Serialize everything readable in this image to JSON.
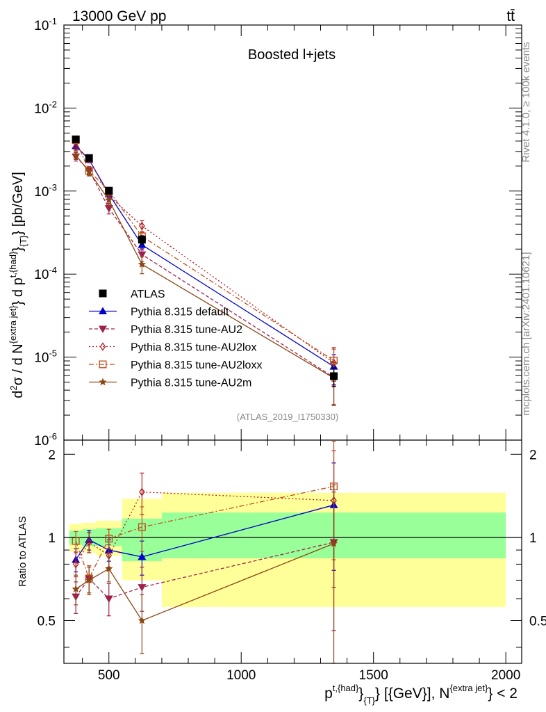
{
  "header": {
    "left": "13000 GeV pp",
    "right": "tt̄"
  },
  "title": "Boosted l+jets",
  "side_labels": {
    "rivet": "Rivet 4.1.0, ≥ 100k events",
    "mcplots": "mcplots.cern.ch [arXiv:2401.10621]"
  },
  "analysis_id": "(ATLAS_2019_I1750330)",
  "chart_data": [
    {
      "type": "scatter",
      "panel": "main",
      "yscale": "log",
      "ylim": [
        1e-06,
        0.1
      ],
      "xlim": [
        330,
        2060
      ],
      "ylabel": "d²σ / d N^{extra jet} d p_T^{t,{had}} [pb/GeV]",
      "ytick_labels": [
        "10^-6",
        "10^-5",
        "10^-4",
        "10^-3",
        "10^-2",
        "10^-1"
      ],
      "bins": [
        [
          350,
          400
        ],
        [
          400,
          450
        ],
        [
          450,
          550
        ],
        [
          550,
          700
        ],
        [
          700,
          2000
        ]
      ],
      "series": [
        {
          "name": "ATLAS",
          "color": "#000000",
          "marker": "square-filled",
          "dash": "",
          "x": [
            375,
            425,
            500,
            625,
            1350
          ],
          "y": [
            0.0042,
            0.0025,
            0.00101,
            0.00026,
            5.9e-06
          ],
          "err": [
            0.0003,
            0.0002,
            8e-05,
            3e-05,
            1.5e-06
          ]
        },
        {
          "name": "Pythia 8.315 default",
          "color": "#0000cc",
          "marker": "triangle-up",
          "dash": "",
          "x": [
            375,
            425,
            500,
            625,
            1350
          ],
          "y": [
            0.0035,
            0.0024,
            0.00092,
            0.000225,
            7.7e-06
          ],
          "err": [
            0.0003,
            0.0002,
            0.0001,
            3e-05,
            3e-06
          ]
        },
        {
          "name": "Pythia 8.315 tune-AU2",
          "color": "#a0204a",
          "marker": "triangle-down",
          "dash": "5,3",
          "x": [
            375,
            425,
            500,
            625,
            1350
          ],
          "y": [
            0.0026,
            0.00178,
            0.00062,
            0.000172,
            5.7e-06
          ],
          "err": [
            0.0003,
            0.0002,
            9e-05,
            3e-05,
            3e-06
          ]
        },
        {
          "name": "Pythia 8.315 tune-AU2lox",
          "color": "#b01e1e",
          "marker": "diamond-open",
          "dash": "2,3",
          "x": [
            375,
            425,
            500,
            625,
            1350
          ],
          "y": [
            0.0034,
            0.0024,
            0.00088,
            0.00038,
            8.5e-06
          ],
          "err": [
            0.0003,
            0.0002,
            0.0001,
            6e-05,
            4e-06
          ]
        },
        {
          "name": "Pythia 8.315 tune-AU2loxx",
          "color": "#c0501e",
          "marker": "square-open",
          "dash": "7,3,2,3",
          "x": [
            375,
            425,
            500,
            625,
            1350
          ],
          "y": [
            0.0041,
            0.00175,
            0.00101,
            0.000285,
            9.1e-06
          ],
          "err": [
            0.0003,
            0.0002,
            0.0001,
            4e-05,
            4e-06
          ]
        },
        {
          "name": "Pythia 8.315 tune-AU2m",
          "color": "#8b4513",
          "marker": "star",
          "dash": "",
          "x": [
            375,
            425,
            500,
            625,
            1350
          ],
          "y": [
            0.0027,
            0.00172,
            0.00078,
            0.000131,
            5.6e-06
          ],
          "err": [
            0.0003,
            0.0002,
            0.0001,
            3e-05,
            3e-06
          ]
        }
      ]
    },
    {
      "type": "scatter",
      "panel": "ratio",
      "ylabel": "Ratio to ATLAS",
      "ylim": [
        0.35,
        2.25
      ],
      "xlim": [
        330,
        2060
      ],
      "xlabel": "p_T^{t,{had}} [{GeV}], N^{extra jet} < 2",
      "xtick_labels": [
        "500",
        "1000",
        "1500",
        "2000"
      ],
      "ytick_labels": [
        "0.5",
        "1",
        "2"
      ],
      "ytick_values": [
        0.5,
        1,
        2
      ],
      "bands": {
        "bins": [
          [
            350,
            400
          ],
          [
            400,
            450
          ],
          [
            450,
            550
          ],
          [
            550,
            700
          ],
          [
            700,
            2000
          ]
        ],
        "green": [
          [
            0.94,
            1.06
          ],
          [
            0.93,
            1.07
          ],
          [
            0.93,
            1.08
          ],
          [
            0.82,
            1.17
          ],
          [
            0.84,
            1.23
          ]
        ],
        "yellow": [
          [
            0.89,
            1.12
          ],
          [
            0.88,
            1.13
          ],
          [
            0.86,
            1.15
          ],
          [
            0.7,
            1.38
          ],
          [
            0.56,
            1.45
          ]
        ]
      },
      "series": [
        {
          "name": "Pythia 8.315 default",
          "color": "#0000cc",
          "marker": "triangle-up",
          "dash": "",
          "x": [
            375,
            425,
            500,
            625,
            1350
          ],
          "y": [
            0.83,
            0.98,
            0.9,
            0.85,
            1.31
          ],
          "err": [
            0.08,
            0.08,
            0.08,
            0.12,
            0.55
          ]
        },
        {
          "name": "Pythia 8.315 tune-AU2",
          "color": "#a0204a",
          "marker": "triangle-down",
          "dash": "5,3",
          "x": [
            375,
            425,
            500,
            625,
            1350
          ],
          "y": [
            0.61,
            0.71,
            0.6,
            0.66,
            0.96
          ],
          "err": [
            0.08,
            0.08,
            0.08,
            0.12,
            0.5
          ]
        },
        {
          "name": "Pythia 8.315 tune-AU2lox",
          "color": "#b01e1e",
          "marker": "diamond-open",
          "dash": "2,3",
          "x": [
            375,
            425,
            500,
            625,
            1350
          ],
          "y": [
            0.8,
            0.96,
            0.86,
            1.46,
            1.36
          ],
          "err": [
            0.08,
            0.08,
            0.08,
            0.25,
            0.7
          ]
        },
        {
          "name": "Pythia 8.315 tune-AU2loxx",
          "color": "#c0501e",
          "marker": "square-open",
          "dash": "7,3,2,3",
          "x": [
            375,
            425,
            500,
            625,
            1350
          ],
          "y": [
            0.97,
            0.71,
            0.99,
            1.09,
            1.53
          ],
          "err": [
            0.08,
            0.08,
            0.08,
            0.2,
            0.7
          ]
        },
        {
          "name": "Pythia 8.315 tune-AU2m",
          "color": "#8b4513",
          "marker": "star",
          "dash": "",
          "x": [
            375,
            425,
            500,
            625,
            1350
          ],
          "y": [
            0.65,
            0.7,
            0.77,
            0.5,
            0.95
          ],
          "err": [
            0.08,
            0.08,
            0.08,
            0.12,
            0.6
          ]
        }
      ]
    }
  ]
}
